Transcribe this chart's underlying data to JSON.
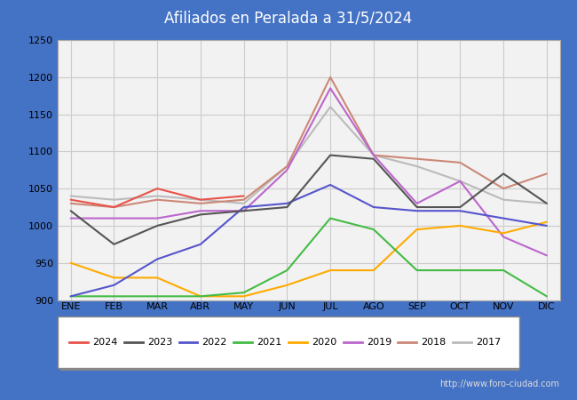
{
  "title": "Afiliados en Peralada a 31/5/2024",
  "title_bg_color": "#4472c4",
  "title_text_color": "#ffffff",
  "ylim": [
    900,
    1250
  ],
  "yticks": [
    900,
    950,
    1000,
    1050,
    1100,
    1150,
    1200,
    1250
  ],
  "months": [
    "ENE",
    "FEB",
    "MAR",
    "ABR",
    "MAY",
    "JUN",
    "JUL",
    "AGO",
    "SEP",
    "OCT",
    "NOV",
    "DIC"
  ],
  "series": {
    "2024": {
      "color": "#e8534a",
      "data": [
        1035,
        1025,
        1050,
        1035,
        1040,
        null,
        null,
        null,
        null,
        null,
        null,
        null
      ]
    },
    "2023": {
      "color": "#555555",
      "data": [
        1020,
        975,
        1000,
        1015,
        1020,
        1025,
        1095,
        1090,
        1025,
        1025,
        1070,
        1030
      ]
    },
    "2022": {
      "color": "#5555cc",
      "data": [
        905,
        920,
        955,
        975,
        1025,
        1030,
        1055,
        1025,
        1020,
        1020,
        1010,
        1000
      ]
    },
    "2021": {
      "color": "#44bb44",
      "data": [
        905,
        905,
        905,
        905,
        910,
        940,
        1010,
        995,
        940,
        940,
        940,
        905
      ]
    },
    "2020": {
      "color": "#ffaa00",
      "data": [
        950,
        930,
        930,
        905,
        905,
        920,
        940,
        940,
        995,
        1000,
        990,
        1005
      ]
    },
    "2019": {
      "color": "#bb66cc",
      "data": [
        1010,
        1010,
        1010,
        1020,
        1020,
        1075,
        1185,
        1095,
        1030,
        1060,
        985,
        960
      ]
    },
    "2018": {
      "color": "#cc8877",
      "data": [
        1030,
        1025,
        1035,
        1030,
        1035,
        1080,
        1200,
        1095,
        1090,
        1085,
        1050,
        1070
      ]
    },
    "2017": {
      "color": "#bbbbbb",
      "data": [
        1040,
        1035,
        1040,
        1035,
        1030,
        1080,
        1160,
        1095,
        1080,
        1060,
        1035,
        1030
      ]
    }
  },
  "footer": "http://www.foro-ciudad.com",
  "grid_color": "#cccccc",
  "plot_bg_color": "#f0f0f0",
  "fig_border_color": "#4472c4"
}
